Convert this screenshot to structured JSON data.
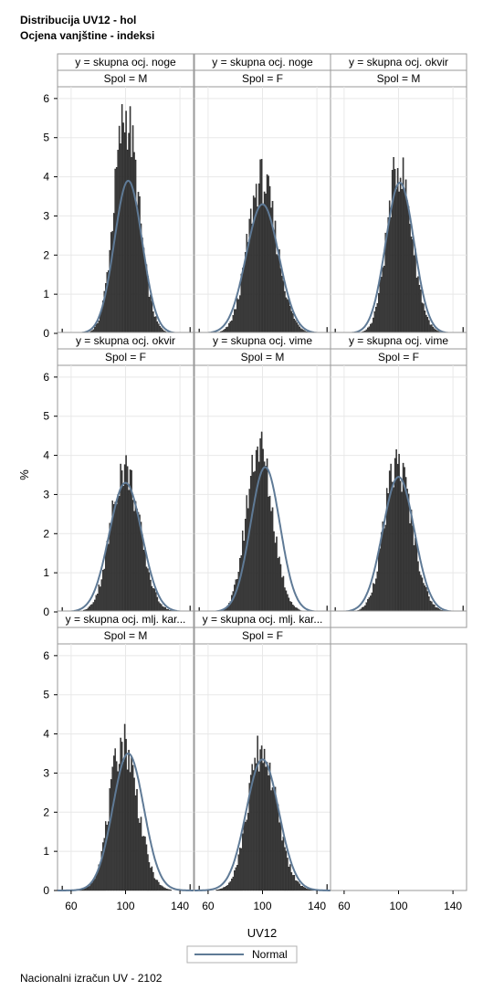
{
  "title": "Distribucija UV12 - hol",
  "subtitle": "Ocjena vanjštine - indeksi",
  "footnote": "Nacionalni izračun UV - 2102",
  "chart_data": {
    "type": "histogram-panel",
    "xlabel": "UV12",
    "ylabel": "%",
    "xticks": [
      60,
      100,
      140
    ],
    "yticks": [
      0,
      1,
      2,
      3,
      4,
      5,
      6
    ],
    "xlim": [
      50,
      150
    ],
    "ylim": [
      0,
      6.3
    ],
    "grid": true,
    "legend": {
      "position": "bottom",
      "entries": [
        "Normal"
      ]
    },
    "colors": {
      "bars": "#3b3b3b",
      "normal_curve": "#5f7a96",
      "frame": "#9a9a9a",
      "grid": "#e8e8e8",
      "header_bg": "#ffffff"
    },
    "panels": [
      {
        "row_header": "y = skupna ocj. noge",
        "col_header": "Spol = M",
        "normal_mean": 102,
        "normal_sd": 10.2,
        "normal_peak": 3.9,
        "hist_peak": 5.85,
        "hist_mode": 100
      },
      {
        "row_header": "y = skupna ocj. noge",
        "col_header": "Spol = F",
        "normal_mean": 100,
        "normal_sd": 12,
        "normal_peak": 3.3,
        "hist_peak": 4.45,
        "hist_mode": 99
      },
      {
        "row_header": "y = skupna ocj. okvir",
        "col_header": "Spol = M",
        "normal_mean": 101,
        "normal_sd": 10.4,
        "normal_peak": 3.85,
        "hist_peak": 4.5,
        "hist_mode": 100
      },
      {
        "row_header": "y = skupna ocj. okvir",
        "col_header": "Spol = F",
        "normal_mean": 100,
        "normal_sd": 12,
        "normal_peak": 3.3,
        "hist_peak": 4.0,
        "hist_mode": 99
      },
      {
        "row_header": "y = skupna ocj. vime",
        "col_header": "Spol = M",
        "normal_mean": 102,
        "normal_sd": 10.8,
        "normal_peak": 3.7,
        "hist_peak": 4.6,
        "hist_mode": 97
      },
      {
        "row_header": "y = skupna ocj. vime",
        "col_header": "Spol = F",
        "normal_mean": 100,
        "normal_sd": 11.6,
        "normal_peak": 3.45,
        "hist_peak": 4.15,
        "hist_mode": 99
      },
      {
        "row_header": "y = skupna ocj. mlj. kar...",
        "col_header": "Spol = M",
        "normal_mean": 102,
        "normal_sd": 11.4,
        "normal_peak": 3.5,
        "hist_peak": 4.25,
        "hist_mode": 98
      },
      {
        "row_header": "y = skupna ocj. mlj. kar...",
        "col_header": "Spol = F",
        "normal_mean": 100,
        "normal_sd": 12,
        "normal_peak": 3.35,
        "hist_peak": 3.95,
        "hist_mode": 99
      }
    ]
  }
}
